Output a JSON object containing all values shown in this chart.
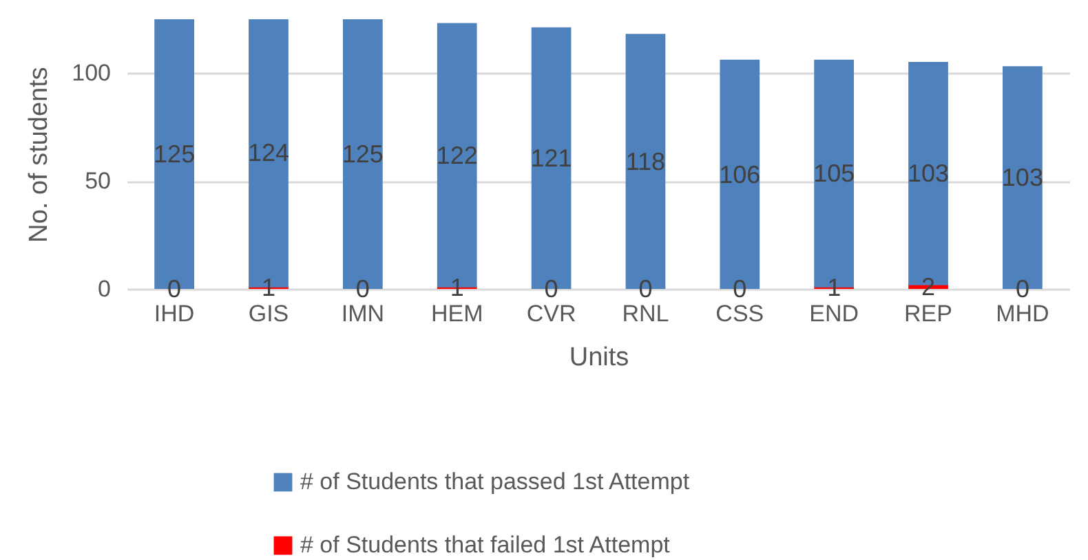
{
  "chart_data": {
    "type": "bar",
    "xlabel": "Units",
    "ylabel": "No. of students",
    "categories": [
      "IHD",
      "GIS",
      "IMN",
      "HEM",
      "CVR",
      "RNL",
      "CSS",
      "END",
      "REP",
      "MHD"
    ],
    "stacked": true,
    "series": [
      {
        "name": "# of Students that failed 1st Attempt",
        "color": "#ff0000",
        "values": [
          0,
          1,
          0,
          1,
          0,
          0,
          0,
          1,
          2,
          0
        ]
      },
      {
        "name": "# of Students that passed 1st Attempt",
        "color": "#4f81bd",
        "values": [
          125,
          124,
          125,
          122,
          121,
          118,
          106,
          105,
          103,
          103
        ]
      }
    ],
    "ylim": [
      0,
      125
    ],
    "yticks": [
      0,
      50,
      100
    ],
    "grid": "y",
    "legend": "bottom",
    "data_labels": true
  }
}
